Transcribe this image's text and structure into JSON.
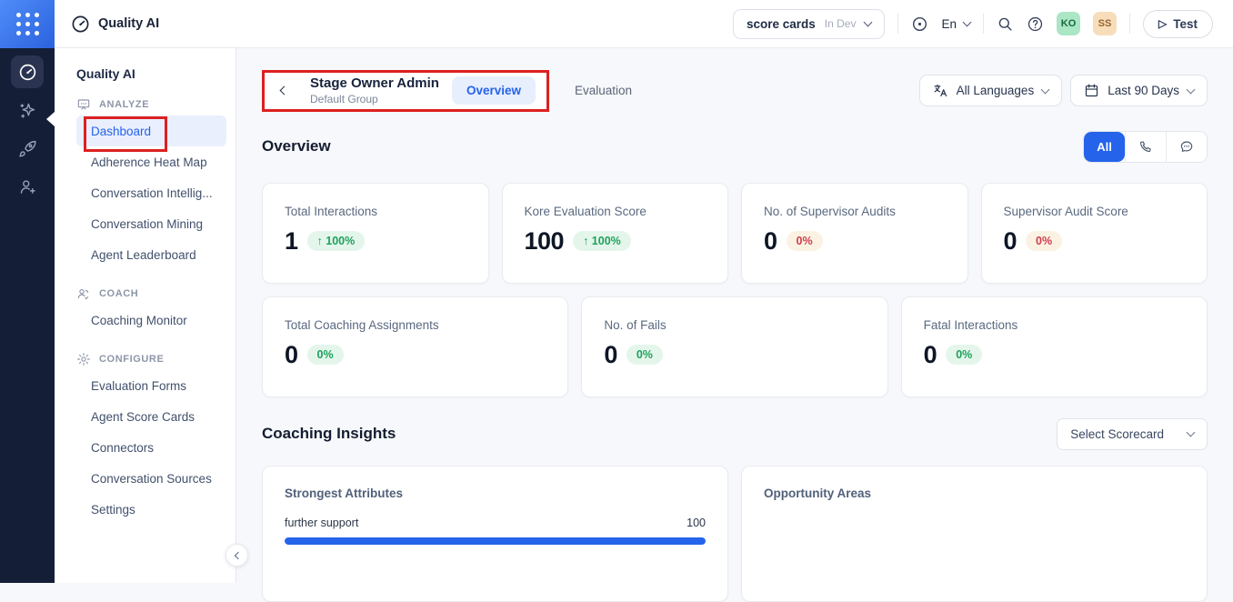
{
  "colors": {
    "accent_blue": "#2563eb",
    "annotation_red": "#dd2020",
    "rail_bg": "#141e37",
    "green_text": "#1fa05c",
    "green_bg": "#e4f6eb",
    "red_text": "#cf3d4d",
    "red_bg": "#fcf2e3"
  },
  "icons": {
    "app_launcher": "grid-dots",
    "logo": "gauge",
    "topbar": [
      "record-target",
      "chevron-down",
      "magnifier",
      "question-circle",
      "play-triangle"
    ],
    "rail": [
      "gauge",
      "sparkles",
      "rocket",
      "user-plus"
    ],
    "sections": {
      "analyze": "presentation-board",
      "coach": "people-chat",
      "configure": "gear"
    },
    "filters": {
      "language": "translate",
      "date": "calendar"
    },
    "channels": [
      "all",
      "phone",
      "chat-bubble"
    ],
    "collapse": "chevron-left",
    "back": "chevron-left"
  },
  "topbar": {
    "logo": "Quality AI",
    "workspace": {
      "name": "score cards",
      "status": "In Dev"
    },
    "language": "En",
    "avatars": [
      {
        "initials": "KO"
      },
      {
        "initials": "SS"
      }
    ],
    "test_label": "Test"
  },
  "sidebar": {
    "title": "Quality AI",
    "sections": [
      {
        "label": "ANALYZE",
        "items": [
          {
            "label": "Dashboard",
            "active": true,
            "annotated": true
          },
          {
            "label": "Adherence Heat Map"
          },
          {
            "label": "Conversation Intellig..."
          },
          {
            "label": "Conversation Mining"
          },
          {
            "label": "Agent Leaderboard"
          }
        ]
      },
      {
        "label": "COACH",
        "items": [
          {
            "label": "Coaching Monitor"
          }
        ]
      },
      {
        "label": "CONFIGURE",
        "items": [
          {
            "label": "Evaluation Forms"
          },
          {
            "label": "Agent Score Cards"
          },
          {
            "label": "Connectors"
          },
          {
            "label": "Conversation Sources"
          },
          {
            "label": "Settings"
          }
        ]
      }
    ]
  },
  "header": {
    "title": "Stage Owner Admin",
    "subtitle": "Default Group",
    "tabs": [
      {
        "label": "Overview",
        "active": true
      },
      {
        "label": "Evaluation",
        "active": false
      }
    ],
    "language_filter": "All Languages",
    "date_filter": "Last 90 Days"
  },
  "overview": {
    "heading": "Overview",
    "channel_filter": {
      "all_label": "All"
    },
    "metrics_row1": [
      {
        "label": "Total Interactions",
        "value": "1",
        "change": "↑ 100%",
        "trend": "up"
      },
      {
        "label": "Kore Evaluation Score",
        "value": "100",
        "change": "↑ 100%",
        "trend": "up"
      },
      {
        "label": "No. of Supervisor Audits",
        "value": "0",
        "change": "0%",
        "trend": "down"
      },
      {
        "label": "Supervisor Audit Score",
        "value": "0",
        "change": "0%",
        "trend": "down"
      }
    ],
    "metrics_row2": [
      {
        "label": "Total Coaching Assignments",
        "value": "0",
        "change": "0%",
        "trend": "flat"
      },
      {
        "label": "No. of Fails",
        "value": "0",
        "change": "0%",
        "trend": "flat"
      },
      {
        "label": "Fatal Interactions",
        "value": "0",
        "change": "0%",
        "trend": "flat"
      }
    ]
  },
  "coaching_insights": {
    "heading": "Coaching Insights",
    "scorecard_dropdown": "Select Scorecard",
    "strongest_attributes": {
      "title": "Strongest Attributes",
      "items": [
        {
          "label": "further support",
          "value": "100",
          "percent": 100
        }
      ]
    },
    "opportunity_areas": {
      "title": "Opportunity Areas"
    }
  }
}
